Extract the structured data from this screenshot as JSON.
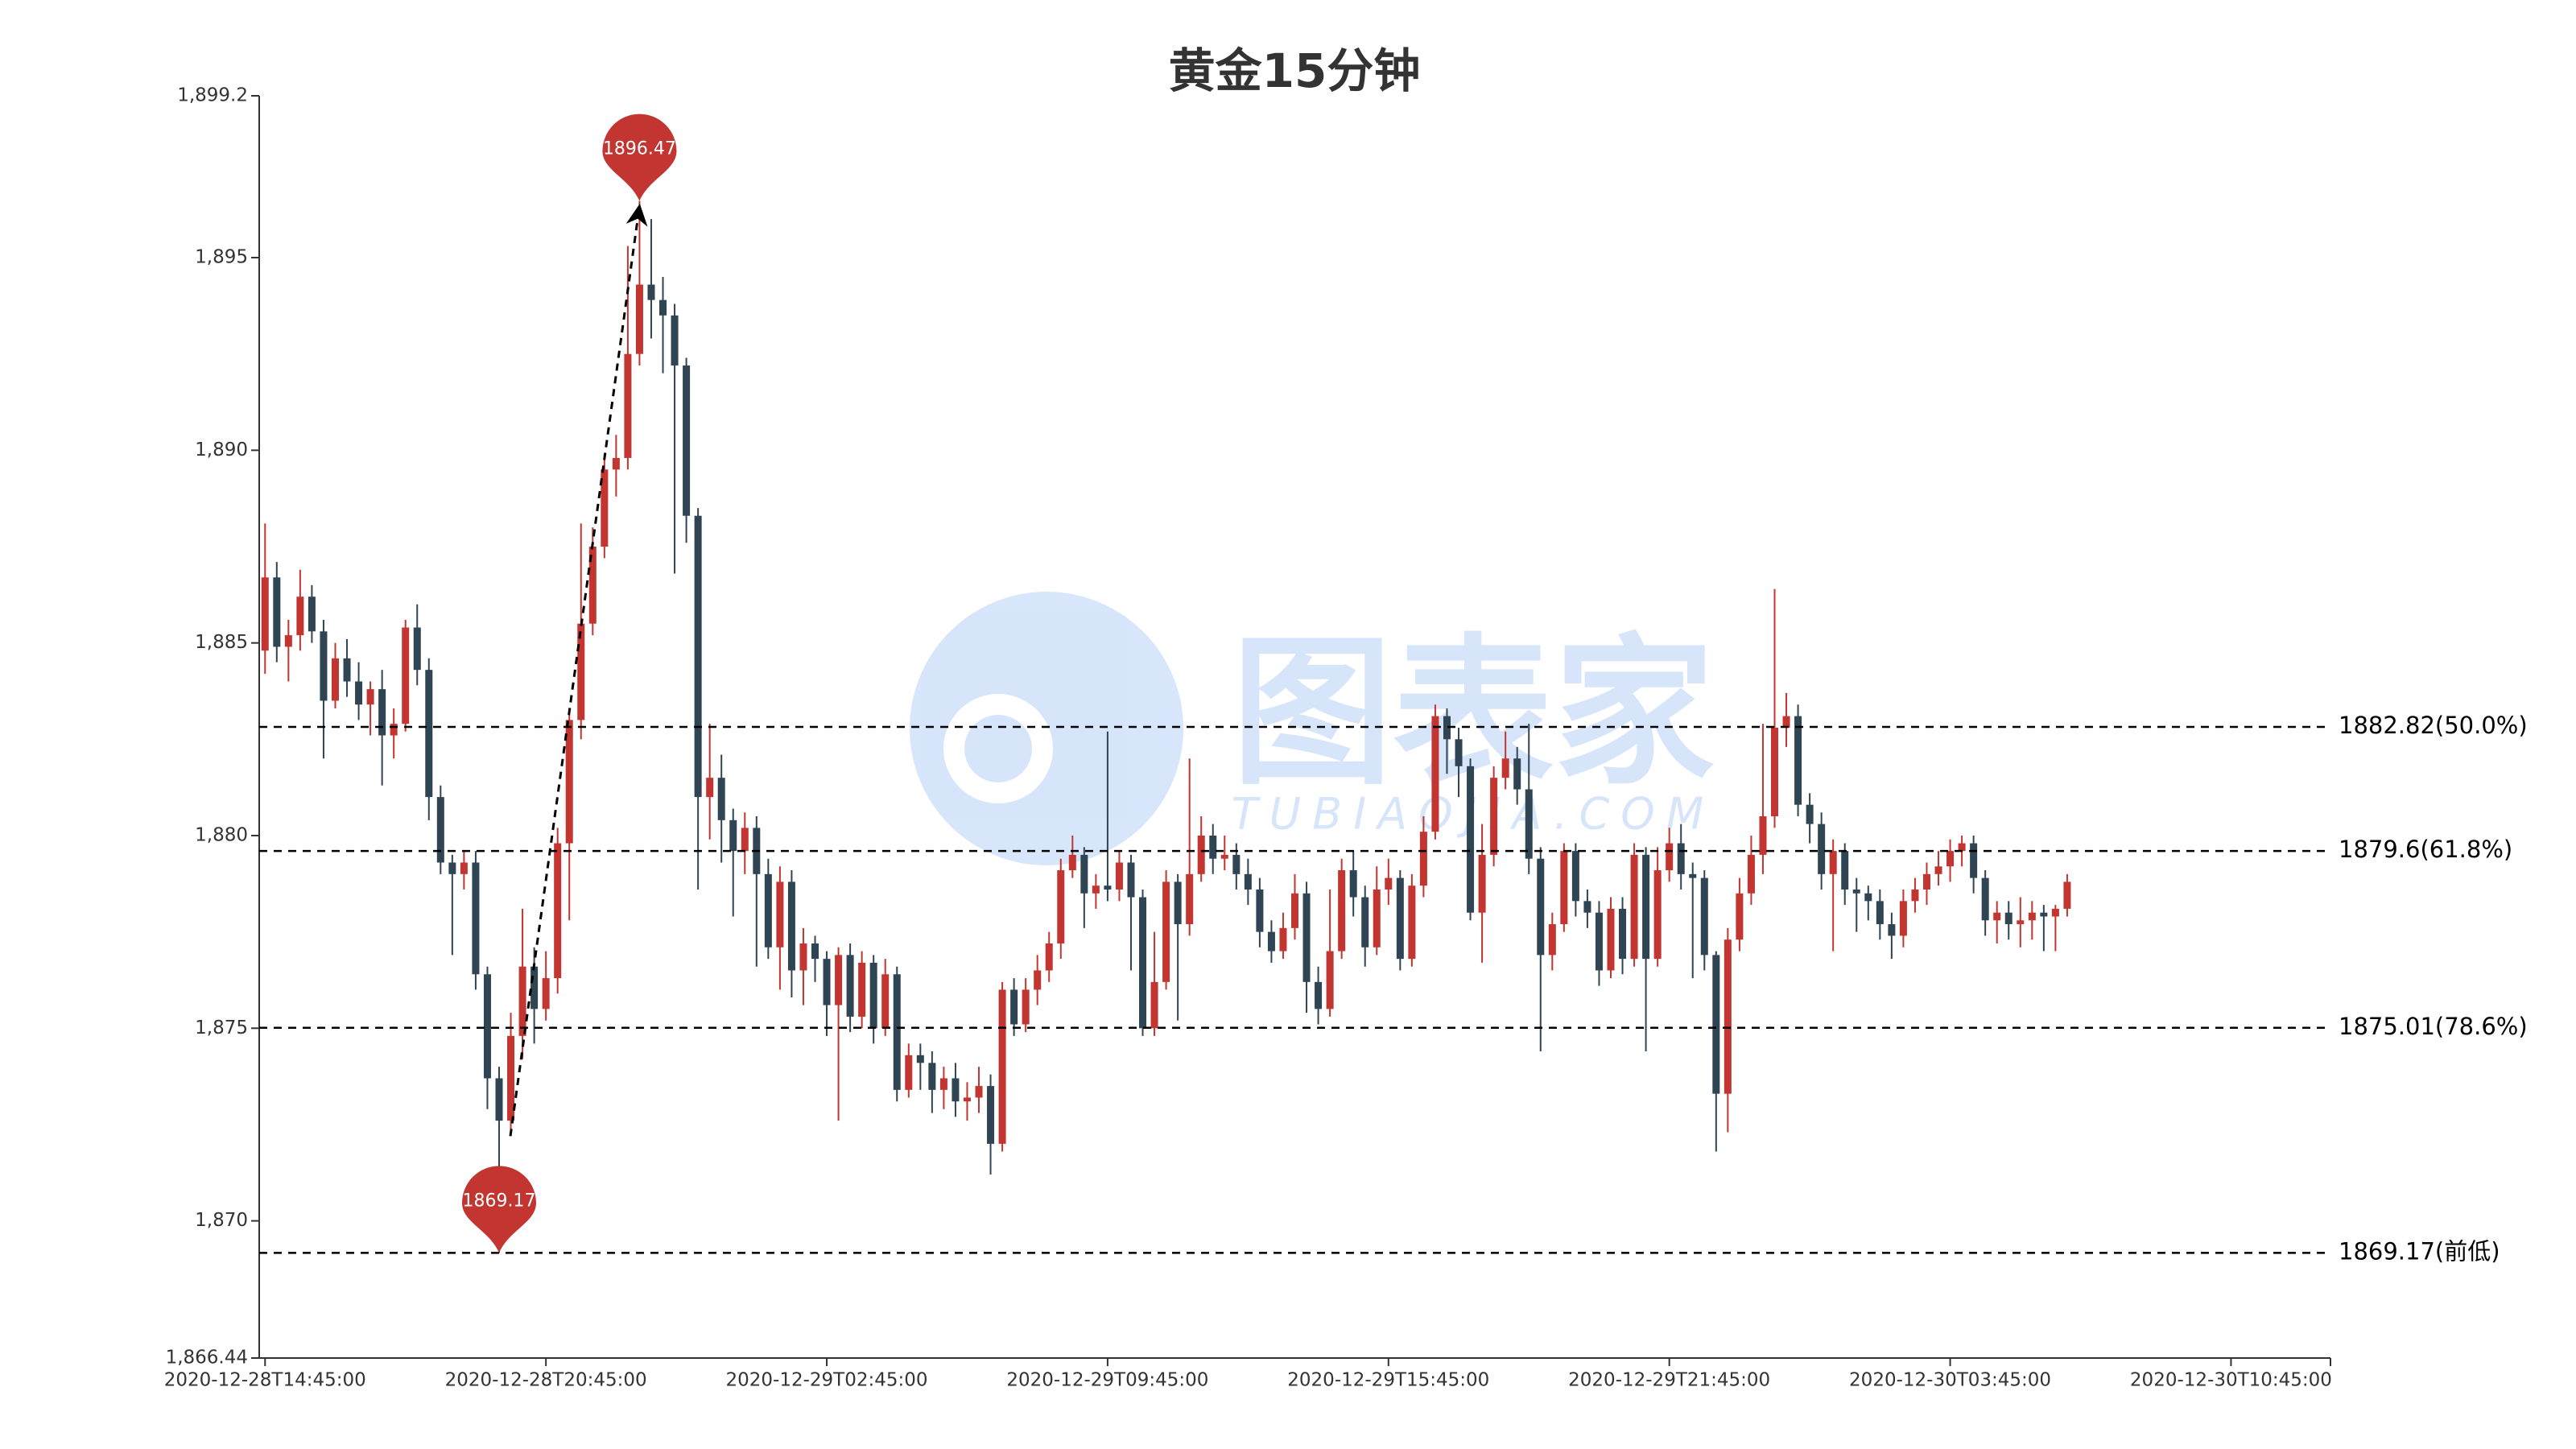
{
  "chart_data": {
    "type": "candlestick",
    "title": "黄金15分钟",
    "watermark": {
      "title": "图表家",
      "subtitle": "TUBIAOJIA.COM"
    },
    "up_color": "#c23531",
    "down_color": "#2f4554",
    "categories": [
      "2020-12-28T14:45:00",
      null,
      null,
      null,
      null,
      null,
      null,
      null,
      null,
      null,
      null,
      null,
      null,
      null,
      null,
      null,
      null,
      null,
      null,
      null,
      null,
      null,
      null,
      null,
      "2020-12-28T20:45:00",
      null,
      null,
      null,
      null,
      null,
      null,
      null,
      null,
      null,
      null,
      null,
      null,
      null,
      null,
      null,
      null,
      null,
      null,
      null,
      null,
      null,
      null,
      null,
      "2020-12-29T02:45:00",
      null,
      null,
      null,
      null,
      null,
      null,
      null,
      null,
      null,
      null,
      null,
      null,
      null,
      null,
      null,
      null,
      null,
      null,
      null,
      null,
      null,
      null,
      null,
      "2020-12-29T09:45:00",
      null,
      null,
      null,
      null,
      null,
      null,
      null,
      null,
      null,
      null,
      null,
      null,
      null,
      null,
      null,
      null,
      null,
      null,
      null,
      null,
      null,
      null,
      null,
      "2020-12-29T15:45:00",
      null,
      null,
      null,
      null,
      null,
      null,
      null,
      null,
      null,
      null,
      null,
      null,
      null,
      null,
      null,
      null,
      null,
      null,
      null,
      null,
      null,
      null,
      null,
      "2020-12-29T21:45:00",
      null,
      null,
      null,
      null,
      null,
      null,
      null,
      null,
      null,
      null,
      null,
      null,
      null,
      null,
      null,
      null,
      null,
      null,
      null,
      null,
      null,
      null,
      null,
      "2020-12-30T03:45:00",
      null,
      null,
      null,
      null,
      null,
      null,
      null,
      null,
      null,
      null,
      null,
      null,
      null,
      null,
      null,
      null,
      null,
      null,
      null,
      null,
      null,
      null,
      null,
      "2020-12-30T10:45:00",
      null,
      null,
      null,
      null,
      null,
      null,
      null,
      null
    ],
    "values": [
      [
        1884.8,
        1886.7,
        1884.2,
        1888.1
      ],
      [
        1886.7,
        1884.9,
        1884.5,
        1887.1
      ],
      [
        1884.9,
        1885.2,
        1884.0,
        1885.6
      ],
      [
        1885.2,
        1886.2,
        1884.8,
        1886.9
      ],
      [
        1886.2,
        1885.3,
        1885.0,
        1886.5
      ],
      [
        1885.3,
        1883.5,
        1882.0,
        1885.6
      ],
      [
        1883.5,
        1884.6,
        1883.3,
        1885.0
      ],
      [
        1884.6,
        1884.0,
        1883.6,
        1885.1
      ],
      [
        1884.0,
        1883.4,
        1883.0,
        1884.5
      ],
      [
        1883.4,
        1883.8,
        1882.6,
        1884.0
      ],
      [
        1883.8,
        1882.6,
        1881.3,
        1884.3
      ],
      [
        1882.6,
        1882.9,
        1882.0,
        1883.3
      ],
      [
        1882.9,
        1885.4,
        1882.7,
        1885.6
      ],
      [
        1885.4,
        1884.3,
        1883.9,
        1886.0
      ],
      [
        1884.3,
        1881.0,
        1880.4,
        1884.6
      ],
      [
        1881.0,
        1879.3,
        1879.0,
        1881.3
      ],
      [
        1879.3,
        1879.0,
        1876.9,
        1879.5
      ],
      [
        1879.0,
        1879.3,
        1878.6,
        1879.6
      ],
      [
        1879.3,
        1876.4,
        1876.0,
        1879.6
      ],
      [
        1876.4,
        1873.7,
        1872.9,
        1876.6
      ],
      [
        1873.7,
        1872.6,
        1869.17,
        1874.0
      ],
      [
        1872.6,
        1874.8,
        1872.3,
        1875.4
      ],
      [
        1874.8,
        1876.6,
        1874.2,
        1878.1
      ],
      [
        1876.6,
        1875.5,
        1874.6,
        1877.1
      ],
      [
        1875.5,
        1876.3,
        1875.2,
        1877.0
      ],
      [
        1876.3,
        1879.8,
        1875.9,
        1880.2
      ],
      [
        1879.8,
        1883.0,
        1877.8,
        1883.3
      ],
      [
        1883.0,
        1885.5,
        1882.5,
        1888.1
      ],
      [
        1885.5,
        1887.5,
        1885.2,
        1888.0
      ],
      [
        1887.5,
        1889.5,
        1887.2,
        1889.9
      ],
      [
        1889.5,
        1889.8,
        1888.8,
        1890.4
      ],
      [
        1889.8,
        1892.5,
        1889.5,
        1895.3
      ],
      [
        1892.5,
        1894.3,
        1892.2,
        1896.47
      ],
      [
        1894.3,
        1893.9,
        1892.9,
        1896.0
      ],
      [
        1893.9,
        1893.5,
        1892.0,
        1894.5
      ],
      [
        1893.5,
        1892.2,
        1886.8,
        1893.8
      ],
      [
        1892.2,
        1888.3,
        1887.6,
        1892.4
      ],
      [
        1888.3,
        1881.0,
        1878.6,
        1888.5
      ],
      [
        1881.0,
        1881.5,
        1879.9,
        1882.9
      ],
      [
        1881.5,
        1880.4,
        1879.3,
        1882.1
      ],
      [
        1880.4,
        1879.6,
        1877.9,
        1880.7
      ],
      [
        1879.6,
        1880.2,
        1879.0,
        1880.6
      ],
      [
        1880.2,
        1879.0,
        1876.6,
        1880.5
      ],
      [
        1879.0,
        1877.1,
        1876.8,
        1879.4
      ],
      [
        1877.1,
        1878.8,
        1876.0,
        1879.2
      ],
      [
        1878.8,
        1876.5,
        1875.8,
        1879.1
      ],
      [
        1876.5,
        1877.2,
        1875.6,
        1877.6
      ],
      [
        1877.2,
        1876.8,
        1876.2,
        1877.4
      ],
      [
        1876.8,
        1875.6,
        1874.8,
        1877.0
      ],
      [
        1875.6,
        1876.9,
        1872.6,
        1877.1
      ],
      [
        1876.9,
        1875.3,
        1874.9,
        1877.2
      ],
      [
        1875.3,
        1876.7,
        1875.0,
        1877.0
      ],
      [
        1876.7,
        1875.0,
        1874.6,
        1876.9
      ],
      [
        1875.0,
        1876.4,
        1874.8,
        1876.8
      ],
      [
        1876.4,
        1873.4,
        1873.1,
        1876.6
      ],
      [
        1873.4,
        1874.3,
        1873.2,
        1874.6
      ],
      [
        1874.3,
        1874.1,
        1873.4,
        1874.6
      ],
      [
        1874.1,
        1873.4,
        1872.8,
        1874.4
      ],
      [
        1873.4,
        1873.7,
        1872.9,
        1874.0
      ],
      [
        1873.7,
        1873.1,
        1872.7,
        1874.1
      ],
      [
        1873.1,
        1873.2,
        1872.6,
        1873.6
      ],
      [
        1873.2,
        1873.5,
        1872.8,
        1874.0
      ],
      [
        1873.5,
        1872.0,
        1871.2,
        1873.8
      ],
      [
        1872.0,
        1876.0,
        1871.8,
        1876.2
      ],
      [
        1876.0,
        1875.1,
        1874.8,
        1876.3
      ],
      [
        1875.1,
        1876.0,
        1874.9,
        1876.3
      ],
      [
        1876.0,
        1876.5,
        1875.6,
        1876.9
      ],
      [
        1876.5,
        1877.2,
        1876.2,
        1877.5
      ],
      [
        1877.2,
        1879.1,
        1876.8,
        1879.4
      ],
      [
        1879.1,
        1879.5,
        1878.9,
        1880.0
      ],
      [
        1879.5,
        1878.5,
        1877.6,
        1879.7
      ],
      [
        1878.5,
        1878.7,
        1878.1,
        1879.0
      ],
      [
        1878.7,
        1878.6,
        1878.3,
        1882.7
      ],
      [
        1878.6,
        1879.3,
        1878.3,
        1879.6
      ],
      [
        1879.3,
        1878.4,
        1876.5,
        1879.5
      ],
      [
        1878.4,
        1875.0,
        1874.8,
        1878.6
      ],
      [
        1875.0,
        1876.2,
        1874.8,
        1877.5
      ],
      [
        1876.2,
        1878.8,
        1876.0,
        1879.1
      ],
      [
        1878.8,
        1877.7,
        1875.2,
        1879.0
      ],
      [
        1877.7,
        1879.0,
        1877.4,
        1882.0
      ],
      [
        1879.0,
        1880.0,
        1878.8,
        1880.5
      ],
      [
        1880.0,
        1879.4,
        1879.0,
        1880.3
      ],
      [
        1879.4,
        1879.5,
        1879.1,
        1880.0
      ],
      [
        1879.5,
        1879.0,
        1878.6,
        1879.8
      ],
      [
        1879.0,
        1878.6,
        1878.2,
        1879.4
      ],
      [
        1878.6,
        1877.5,
        1877.1,
        1878.9
      ],
      [
        1877.5,
        1877.0,
        1876.7,
        1877.8
      ],
      [
        1877.0,
        1877.6,
        1876.8,
        1878.0
      ],
      [
        1877.6,
        1878.5,
        1877.3,
        1879.0
      ],
      [
        1878.5,
        1876.2,
        1875.4,
        1878.8
      ],
      [
        1876.2,
        1875.5,
        1875.1,
        1876.6
      ],
      [
        1875.5,
        1877.0,
        1875.3,
        1878.6
      ],
      [
        1877.0,
        1879.1,
        1876.8,
        1879.4
      ],
      [
        1879.1,
        1878.4,
        1877.9,
        1879.6
      ],
      [
        1878.4,
        1877.1,
        1876.6,
        1878.7
      ],
      [
        1877.1,
        1878.6,
        1876.9,
        1879.2
      ],
      [
        1878.6,
        1878.9,
        1878.2,
        1879.4
      ],
      [
        1878.9,
        1876.8,
        1876.5,
        1879.1
      ],
      [
        1876.8,
        1878.7,
        1876.6,
        1879.0
      ],
      [
        1878.7,
        1880.1,
        1878.4,
        1880.5
      ],
      [
        1880.1,
        1883.1,
        1879.9,
        1883.4
      ],
      [
        1883.1,
        1882.5,
        1881.6,
        1883.3
      ],
      [
        1882.5,
        1881.8,
        1881.0,
        1882.8
      ],
      [
        1881.8,
        1878.0,
        1877.8,
        1882.0
      ],
      [
        1878.0,
        1879.5,
        1876.7,
        1880.3
      ],
      [
        1879.5,
        1881.5,
        1879.2,
        1881.8
      ],
      [
        1881.5,
        1882.0,
        1881.2,
        1882.7
      ],
      [
        1882.0,
        1881.2,
        1880.8,
        1882.3
      ],
      [
        1881.2,
        1879.4,
        1879.0,
        1882.9
      ],
      [
        1879.4,
        1876.9,
        1874.4,
        1879.7
      ],
      [
        1876.9,
        1877.7,
        1876.5,
        1878.0
      ],
      [
        1877.7,
        1879.6,
        1877.5,
        1879.8
      ],
      [
        1879.6,
        1878.3,
        1877.9,
        1879.8
      ],
      [
        1878.3,
        1878.0,
        1877.6,
        1878.6
      ],
      [
        1878.0,
        1876.5,
        1876.1,
        1878.3
      ],
      [
        1876.5,
        1878.1,
        1876.3,
        1878.4
      ],
      [
        1878.1,
        1876.8,
        1876.4,
        1878.4
      ],
      [
        1876.8,
        1879.5,
        1876.6,
        1879.8
      ],
      [
        1879.5,
        1876.8,
        1874.4,
        1879.7
      ],
      [
        1876.8,
        1879.1,
        1876.6,
        1879.7
      ],
      [
        1879.1,
        1879.8,
        1878.8,
        1880.2
      ],
      [
        1879.8,
        1879.0,
        1878.6,
        1880.3
      ],
      [
        1879.0,
        1878.9,
        1876.3,
        1879.3
      ],
      [
        1878.9,
        1876.9,
        1876.5,
        1879.1
      ],
      [
        1876.9,
        1873.3,
        1871.8,
        1877.0
      ],
      [
        1873.3,
        1877.3,
        1872.3,
        1877.6
      ],
      [
        1877.3,
        1878.5,
        1877.0,
        1878.9
      ],
      [
        1878.5,
        1879.5,
        1878.2,
        1880.0
      ],
      [
        1879.5,
        1880.5,
        1879.0,
        1882.9
      ],
      [
        1880.5,
        1882.8,
        1880.2,
        1886.4
      ],
      [
        1882.8,
        1883.1,
        1882.3,
        1883.7
      ],
      [
        1883.1,
        1880.8,
        1880.5,
        1883.4
      ],
      [
        1880.8,
        1880.3,
        1879.8,
        1881.1
      ],
      [
        1880.3,
        1879.0,
        1878.6,
        1880.6
      ],
      [
        1879.0,
        1879.6,
        1877.0,
        1879.9
      ],
      [
        1879.6,
        1878.6,
        1878.2,
        1879.8
      ],
      [
        1878.6,
        1878.5,
        1877.5,
        1878.9
      ],
      [
        1878.5,
        1878.3,
        1877.8,
        1878.7
      ],
      [
        1878.3,
        1877.7,
        1877.3,
        1878.6
      ],
      [
        1877.7,
        1877.4,
        1876.8,
        1878.0
      ],
      [
        1877.4,
        1878.3,
        1877.1,
        1878.6
      ],
      [
        1878.3,
        1878.6,
        1878.0,
        1878.9
      ],
      [
        1878.6,
        1879.0,
        1878.2,
        1879.3
      ],
      [
        1879.0,
        1879.2,
        1878.7,
        1879.6
      ],
      [
        1879.2,
        1879.6,
        1878.8,
        1879.9
      ],
      [
        1879.6,
        1879.8,
        1879.2,
        1880.0
      ],
      [
        1879.8,
        1878.9,
        1878.5,
        1880.0
      ],
      [
        1878.9,
        1877.8,
        1877.4,
        1879.1
      ],
      [
        1877.8,
        1878.0,
        1877.2,
        1878.3
      ],
      [
        1878.0,
        1877.7,
        1877.3,
        1878.3
      ],
      [
        1877.7,
        1877.8,
        1877.1,
        1878.4
      ],
      [
        1877.8,
        1878.0,
        1877.3,
        1878.3
      ],
      [
        1878.0,
        1877.9,
        1877.0,
        1878.2
      ],
      [
        1877.9,
        1878.1,
        1877.0,
        1878.2
      ],
      [
        1878.1,
        1878.8,
        1877.9,
        1879.0
      ],
      null,
      null,
      null,
      null,
      null,
      null,
      null,
      null,
      null,
      null,
      null,
      null,
      null,
      null,
      null,
      null,
      null,
      null,
      null,
      null,
      null,
      null
    ],
    "ylim": [
      1866.44,
      1899.2
    ],
    "yticks": [
      {
        "value": 1866.44,
        "label": "1,866.44"
      },
      {
        "value": 1870,
        "label": "1,870"
      },
      {
        "value": 1875,
        "label": "1,875"
      },
      {
        "value": 1880,
        "label": "1,880"
      },
      {
        "value": 1885,
        "label": "1,885"
      },
      {
        "value": 1890,
        "label": "1,890"
      },
      {
        "value": 1895,
        "label": "1,895"
      },
      {
        "value": 1899.2,
        "label": "1,899.2"
      }
    ],
    "reference_lines": [
      {
        "value": 1882.82,
        "label": "1882.82(50.0%)"
      },
      {
        "value": 1879.6,
        "label": "1879.6(61.8%)"
      },
      {
        "value": 1875.01,
        "label": "1875.01(78.6%)"
      },
      {
        "value": 1869.17,
        "label": "1869.17(前低)"
      }
    ],
    "markers": [
      {
        "value": 1896.47,
        "label": "1896.47"
      },
      {
        "value": 1869.17,
        "label": "1869.17"
      }
    ],
    "marker_color": "#c23531"
  }
}
